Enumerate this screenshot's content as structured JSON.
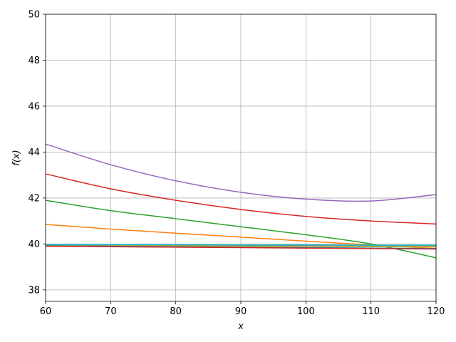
{
  "chart_data": {
    "type": "line",
    "title": "",
    "xlabel": "x",
    "ylabel": "f(x)",
    "xlim": [
      60,
      120
    ],
    "ylim": [
      37.5,
      50
    ],
    "xticks": [
      60,
      70,
      80,
      90,
      100,
      110,
      120
    ],
    "yticks": [
      38,
      40,
      42,
      44,
      46,
      48,
      50
    ],
    "grid": true,
    "legend": "none",
    "series": [
      {
        "color": "#1f77b4",
        "x": [
          60,
          70,
          80,
          90,
          100,
          110,
          120
        ],
        "y": [
          39.97,
          39.96,
          39.96,
          39.95,
          39.95,
          39.94,
          39.94
        ]
      },
      {
        "color": "#ff7f0e",
        "x": [
          60,
          70,
          80,
          90,
          100,
          110,
          120
        ],
        "y": [
          40.85,
          40.65,
          40.47,
          40.3,
          40.12,
          39.96,
          39.8
        ]
      },
      {
        "color": "#2ca02c",
        "x": [
          60,
          70,
          80,
          90,
          100,
          110,
          120
        ],
        "y": [
          41.9,
          41.45,
          41.1,
          40.75,
          40.4,
          40.0,
          39.4
        ]
      },
      {
        "color": "#d62728",
        "x": [
          60,
          70,
          80,
          90,
          100,
          110,
          120
        ],
        "y": [
          43.05,
          42.4,
          41.9,
          41.5,
          41.2,
          41.0,
          40.87
        ]
      },
      {
        "color": "#9467bd",
        "x": [
          60,
          70,
          80,
          90,
          100,
          110,
          120
        ],
        "y": [
          44.35,
          43.45,
          42.75,
          42.25,
          41.95,
          41.87,
          42.15
        ]
      },
      {
        "color": "#8c564b",
        "x": [
          60,
          70,
          80,
          90,
          100,
          110,
          120
        ],
        "y": [
          39.95,
          39.94,
          39.93,
          39.92,
          39.91,
          39.9,
          39.89
        ]
      },
      {
        "color": "#e377c2",
        "x": [
          60,
          70,
          80,
          90,
          100,
          110,
          120
        ],
        "y": [
          39.94,
          39.93,
          39.92,
          39.91,
          39.9,
          39.89,
          39.88
        ]
      },
      {
        "color": "#7f7f7f",
        "x": [
          60,
          70,
          80,
          90,
          100,
          110,
          120
        ],
        "y": [
          39.96,
          39.95,
          39.95,
          39.94,
          39.94,
          39.93,
          39.93
        ]
      },
      {
        "color": "#bcbd22",
        "x": [
          60,
          70,
          80,
          90,
          100,
          110,
          120
        ],
        "y": [
          39.93,
          39.92,
          39.91,
          39.9,
          39.89,
          39.88,
          39.87
        ]
      },
      {
        "color": "#17becf",
        "x": [
          60,
          70,
          80,
          90,
          100,
          110,
          120
        ],
        "y": [
          39.98,
          39.97,
          39.97,
          39.96,
          39.96,
          39.95,
          39.95
        ]
      },
      {
        "color": "#1f77b4",
        "x": [
          60,
          70,
          80,
          90,
          100,
          110,
          120
        ],
        "y": [
          39.92,
          39.9,
          39.88,
          39.86,
          39.84,
          39.82,
          39.8
        ]
      },
      {
        "color": "#d62728",
        "x": [
          60,
          70,
          80,
          90,
          100,
          110,
          120
        ],
        "y": [
          39.9,
          39.88,
          39.86,
          39.84,
          39.82,
          39.8,
          39.78
        ]
      }
    ]
  }
}
